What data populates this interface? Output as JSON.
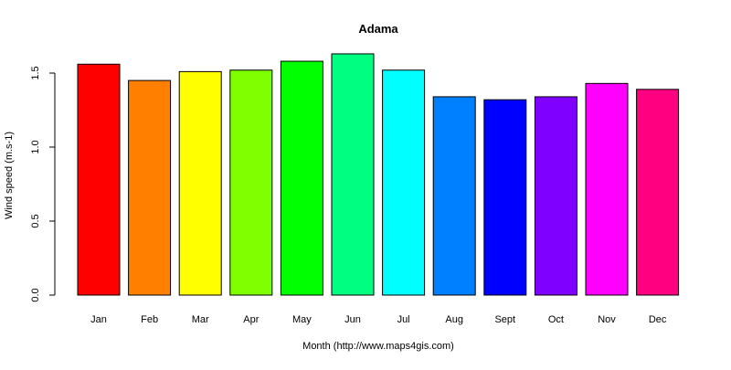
{
  "chart_data": {
    "type": "bar",
    "title": "Adama",
    "xlabel": "Month (http://www.maps4gis.com)",
    "ylabel": "Wind speed (m.s-1)",
    "categories": [
      "Jan",
      "Feb",
      "Mar",
      "Apr",
      "May",
      "Jun",
      "Jul",
      "Aug",
      "Sept",
      "Oct",
      "Nov",
      "Dec"
    ],
    "values": [
      1.56,
      1.45,
      1.51,
      1.52,
      1.58,
      1.63,
      1.52,
      1.34,
      1.32,
      1.34,
      1.43,
      1.39
    ],
    "colors": [
      "#ff0000",
      "#ff8000",
      "#ffff00",
      "#80ff00",
      "#00ff00",
      "#00ff80",
      "#00ffff",
      "#0080ff",
      "#0000ff",
      "#8000ff",
      "#ff00ff",
      "#ff0080"
    ],
    "ylim": [
      0,
      1.63
    ],
    "yticks": [
      "0.0",
      "0.5",
      "1.0",
      "1.5"
    ],
    "grid": false,
    "legend": "none"
  }
}
